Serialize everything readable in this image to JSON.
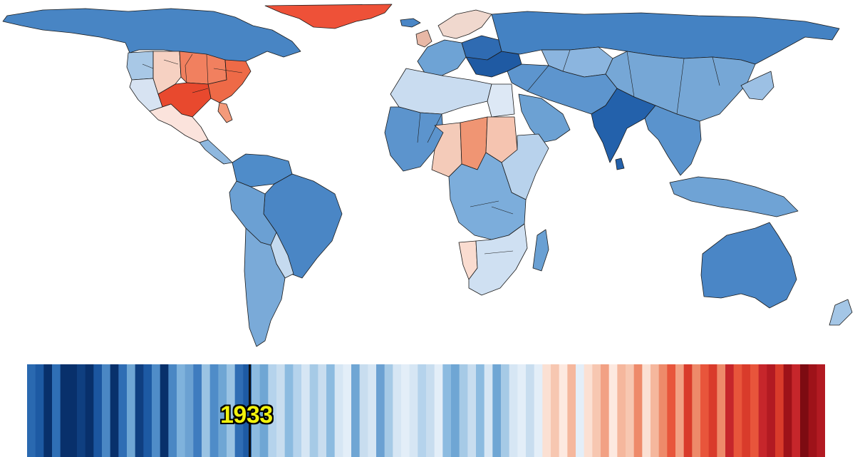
{
  "colors": {
    "background": "#ffffff",
    "border": "#1b1b1b",
    "year_text": "#f2f20c"
  },
  "year": "1933",
  "map_regions": [
    {
      "name": "canada",
      "color": "#4885c4"
    },
    {
      "name": "greenland",
      "color": "#ee5138"
    },
    {
      "name": "usa-west",
      "color": "#d7e3f2"
    },
    {
      "name": "usa-northwest",
      "color": "#a8c8e6"
    },
    {
      "name": "usa-central-plains",
      "color": "#f6d1c2"
    },
    {
      "name": "usa-midwest",
      "color": "#f1805f"
    },
    {
      "name": "usa-east",
      "color": "#ee6a47"
    },
    {
      "name": "usa-texas",
      "color": "#e8492e"
    },
    {
      "name": "usa-florida",
      "color": "#f39a7a"
    },
    {
      "name": "mexico",
      "color": "#fbe3dc"
    },
    {
      "name": "central-america",
      "color": "#8fb8df"
    },
    {
      "name": "colombia-venezuela",
      "color": "#4f8cc9"
    },
    {
      "name": "brazil",
      "color": "#4a86c5"
    },
    {
      "name": "peru-bolivia",
      "color": "#6ba0d3"
    },
    {
      "name": "argentina-chile",
      "color": "#7aaad8"
    },
    {
      "name": "uruguay-paraguay",
      "color": "#c5daef"
    },
    {
      "name": "western-europe",
      "color": "#6ea3d5"
    },
    {
      "name": "uk",
      "color": "#e8b8a6"
    },
    {
      "name": "scandinavia",
      "color": "#f0d8ce"
    },
    {
      "name": "eastern-europe",
      "color": "#2f6bb2"
    },
    {
      "name": "ukraine-balkans",
      "color": "#1f5aa3"
    },
    {
      "name": "russia",
      "color": "#4482c3"
    },
    {
      "name": "kazakhstan",
      "color": "#8bb5df"
    },
    {
      "name": "china-mongolia",
      "color": "#76a7d6"
    },
    {
      "name": "middle-east",
      "color": "#5d95ce"
    },
    {
      "name": "arabia",
      "color": "#6ca1d3"
    },
    {
      "name": "india",
      "color": "#2361ab"
    },
    {
      "name": "southeast-asia",
      "color": "#5a93cd"
    },
    {
      "name": "indonesia",
      "color": "#6fa3d5"
    },
    {
      "name": "japan-korea",
      "color": "#9cc0e4"
    },
    {
      "name": "north-africa",
      "color": "#c9dcf0"
    },
    {
      "name": "egypt",
      "color": "#dde8f5"
    },
    {
      "name": "west-africa",
      "color": "#5c94cd"
    },
    {
      "name": "sahel",
      "color": "#f4cbb9"
    },
    {
      "name": "chad",
      "color": "#f09573"
    },
    {
      "name": "sudan",
      "color": "#f5c4b0"
    },
    {
      "name": "central-africa",
      "color": "#7caddb"
    },
    {
      "name": "east-africa",
      "color": "#b8d2ec"
    },
    {
      "name": "southern-africa",
      "color": "#cfe0f2"
    },
    {
      "name": "namibia",
      "color": "#fadcd0"
    },
    {
      "name": "madagascar",
      "color": "#6aa0d3"
    },
    {
      "name": "australia",
      "color": "#4a86c6"
    },
    {
      "name": "new-zealand",
      "color": "#a4c6e6"
    },
    {
      "name": "iceland",
      "color": "#4a86c6"
    },
    {
      "name": "sri-lanka",
      "color": "#2361ab"
    }
  ],
  "stripe_colors": [
    "#2a69b0",
    "#1d5aa3",
    "#08306b",
    "#2f6fb5",
    "#08306b",
    "#08306b",
    "#0f3f80",
    "#08306b",
    "#1b56a0",
    "#4a87c4",
    "#08306b",
    "#2f6db4",
    "#6fa6d4",
    "#0f3f80",
    "#1d5aa3",
    "#4f8cc8",
    "#08306b",
    "#4a87c4",
    "#7fb2dc",
    "#6ba1d2",
    "#3f7cbf",
    "#9ac3e3",
    "#4f8cc8",
    "#6fa6d4",
    "#9ac3e3",
    "#2f6db4",
    "#1d5aa3",
    "#8cbbe0",
    "#6fa6d4",
    "#b5d3ec",
    "#c8ddef",
    "#8cbbe0",
    "#b5d3ec",
    "#d6e6f4",
    "#a6cae6",
    "#c8ddef",
    "#8cbbe0",
    "#d6e6f4",
    "#e3eef8",
    "#6fa6d4",
    "#c8ddef",
    "#d6e6f4",
    "#6ba1d2",
    "#a6cae6",
    "#d6e6f4",
    "#e3eef8",
    "#d6e6f4",
    "#b5d3ec",
    "#c8ddef",
    "#e3eef8",
    "#8cbbe0",
    "#6fa6d4",
    "#a6cae6",
    "#c8ddef",
    "#8cbbe0",
    "#d6e6f4",
    "#6fa6d4",
    "#a6cae6",
    "#d6e6f4",
    "#e3eef8",
    "#c8ddef",
    "#e3eef8",
    "#fbe0d3",
    "#f7c7b1",
    "#fde9e0",
    "#f5b79d",
    "#e3eef8",
    "#fbe0d3",
    "#f7c7b1",
    "#f2a184",
    "#fde9e0",
    "#f5b79d",
    "#f7c7b1",
    "#ee8a6a",
    "#fbe0d3",
    "#f5b79d",
    "#ee8a6a",
    "#e8553b",
    "#f2a184",
    "#d93b2b",
    "#ee8a6a",
    "#e8553b",
    "#d93b2b",
    "#ee8a6a",
    "#c6262b",
    "#e8553b",
    "#d93b2b",
    "#e8553b",
    "#c6262b",
    "#b21a22",
    "#d93b2b",
    "#9e1219",
    "#c6262b",
    "#7d0b12",
    "#9e1219",
    "#b21a22"
  ]
}
